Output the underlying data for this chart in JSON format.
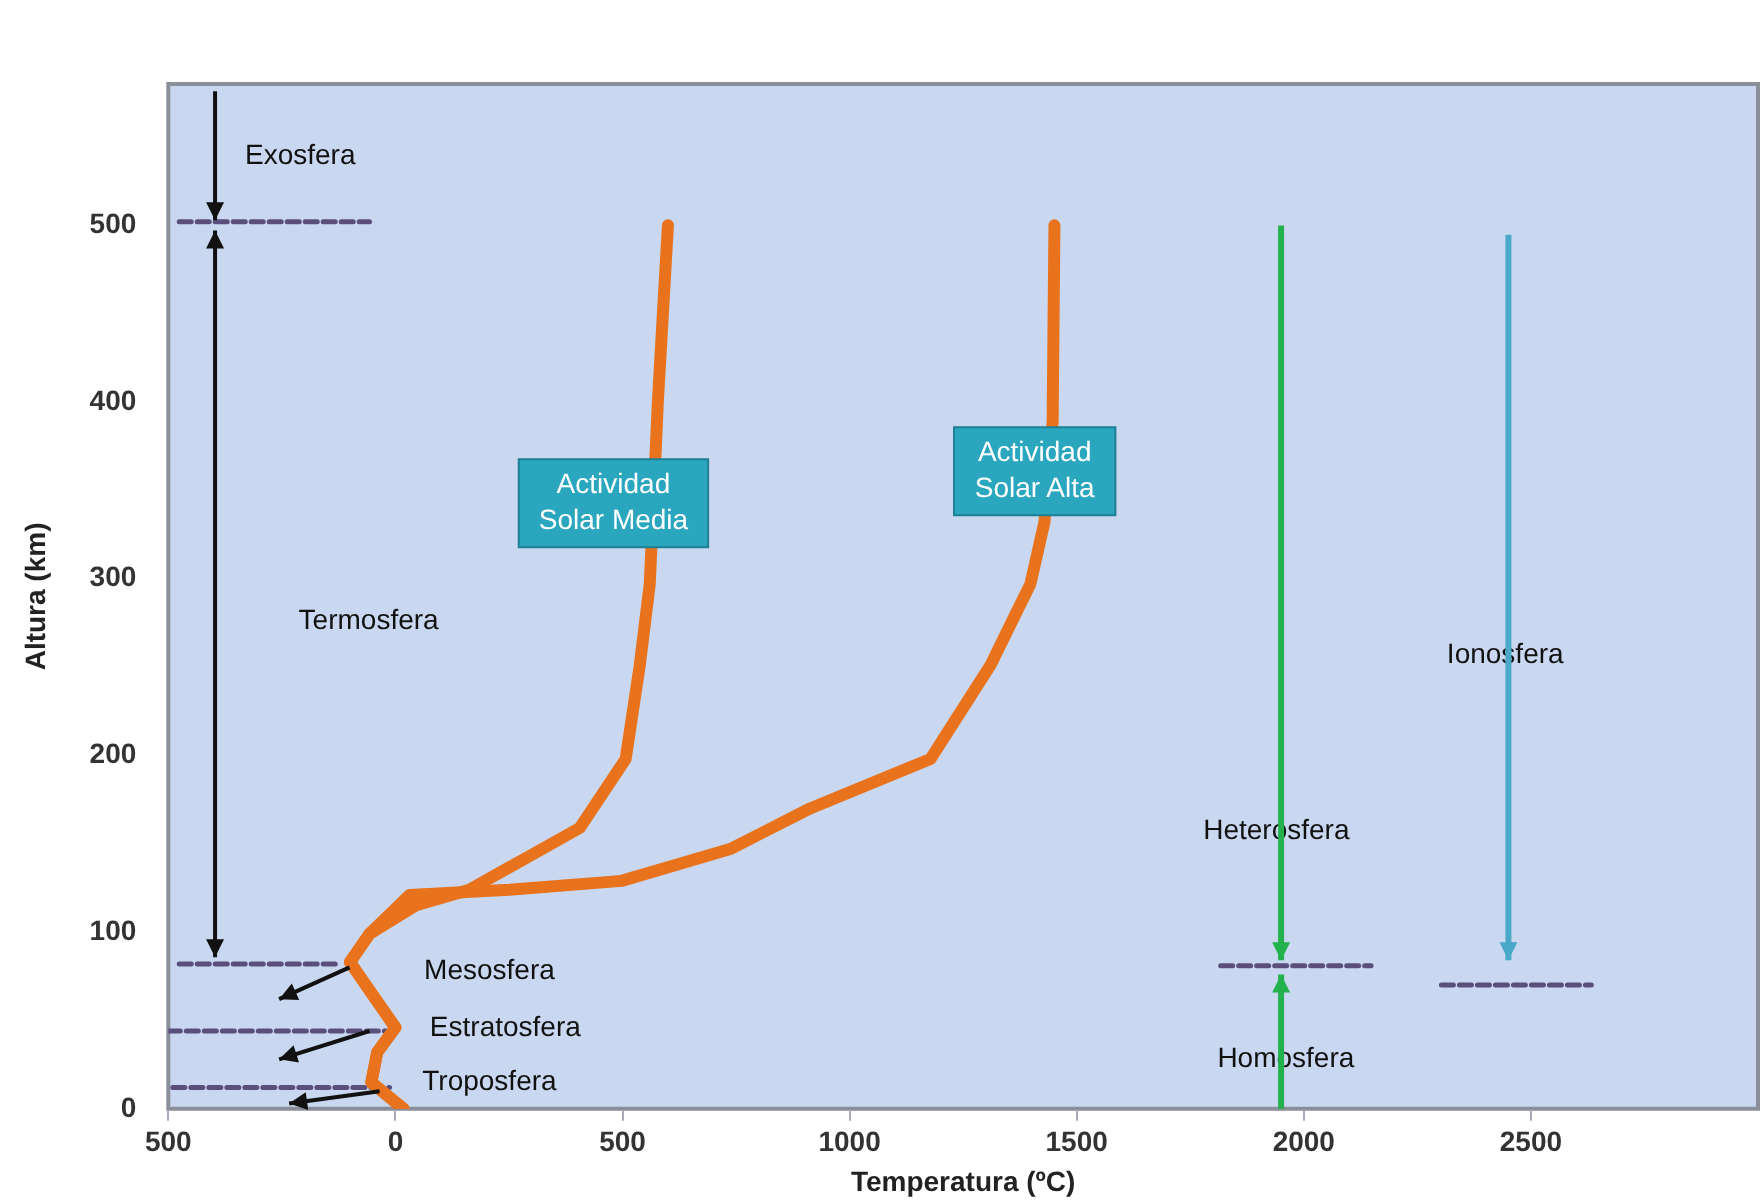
{
  "chart_data": {
    "type": "line",
    "xlabel": "Temperatura (ºC)",
    "ylabel": "Altura (km)",
    "xlim": [
      -500,
      3000
    ],
    "xticks": [
      {
        "value": -500,
        "label": "500"
      },
      0,
      500,
      1000,
      1500,
      2000,
      2500
    ],
    "ylim": [
      0,
      580
    ],
    "yticks": [
      0,
      100,
      200,
      300,
      400,
      500
    ],
    "grid": false,
    "legend": false,
    "series": [
      {
        "color": "#e8731c",
        "x": [
          18,
          -53,
          -40,
          0,
          -57,
          -100,
          -57,
          44,
          163,
          406,
          507,
          538,
          560,
          578,
          600
        ],
        "values": [
          0,
          15,
          32,
          46,
          67,
          83,
          99,
          115,
          124,
          159,
          198,
          251,
          297,
          401,
          500
        ]
      },
      {
        "color": "#e8731c",
        "x": [
          18,
          -53,
          -40,
          0,
          -57,
          -100,
          -57,
          31,
          251,
          498,
          737,
          913,
          1178,
          1310,
          1398,
          1429,
          1447,
          1451
        ],
        "values": [
          0,
          15,
          32,
          46,
          67,
          83,
          99,
          121,
          124,
          129,
          147,
          170,
          198,
          251,
          297,
          332,
          389,
          500
        ]
      },
      {
        "color": "#5a4e7a",
        "line_style": "dashed",
        "x": [
          -476,
          -57
        ],
        "values": [
          502,
          502
        ]
      },
      {
        "color": "#5a4e7a",
        "line_style": "dashed",
        "x": [
          -476,
          -124
        ],
        "values": [
          82,
          82
        ]
      },
      {
        "color": "#5a4e7a",
        "line_style": "dashed",
        "x": [
          -500,
          -13
        ],
        "values": [
          44,
          44
        ]
      },
      {
        "color": "#5a4e7a",
        "line_style": "dashed",
        "x": [
          -490,
          -13
        ],
        "values": [
          12,
          12
        ]
      },
      {
        "color": "#5a4e7a",
        "line_style": "dashed",
        "x": [
          1817,
          2148
        ],
        "values": [
          81,
          81
        ]
      },
      {
        "color": "#5a4e7a",
        "line_style": "dashed",
        "x": [
          2303,
          2633
        ],
        "values": [
          70,
          70
        ]
      }
    ],
    "annotations": [
      "Exosfera",
      "Termosfera",
      "Mesosfera",
      "Estratosfera",
      "Troposfera",
      "Heterosfera",
      "Homosfera",
      "Ionosfera",
      "Actividad Solar Media",
      "Actividad Solar Alta"
    ]
  }
}
